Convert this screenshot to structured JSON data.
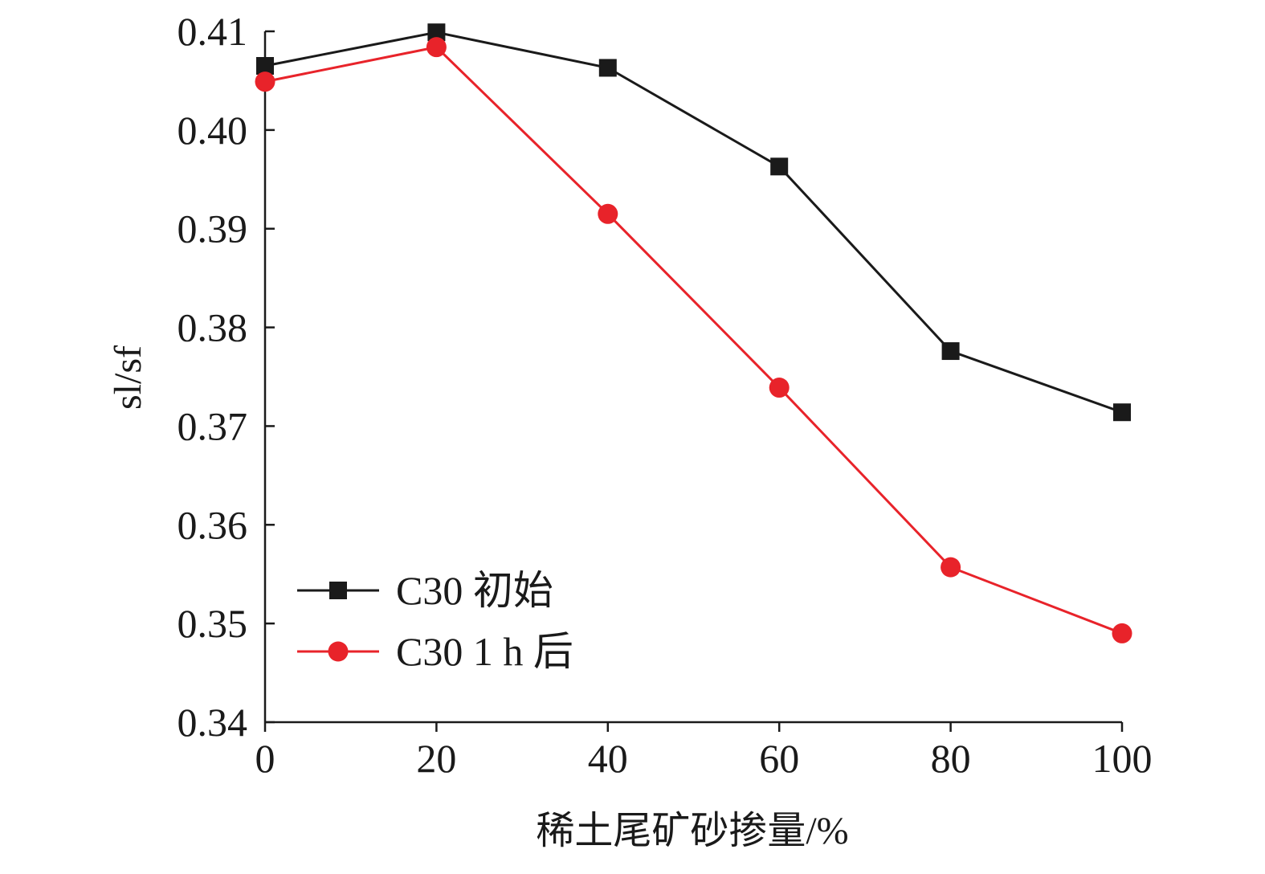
{
  "chart_data": {
    "type": "line",
    "xlabel": "稀土尾矿砂掺量/%",
    "ylabel": "sl/sf",
    "x": [
      0,
      20,
      40,
      60,
      80,
      100
    ],
    "xlim": [
      0,
      100
    ],
    "ylim": [
      0.34,
      0.41
    ],
    "xticks": [
      "0",
      "20",
      "40",
      "60",
      "80",
      "100"
    ],
    "yticks": [
      "0.34",
      "0.35",
      "0.36",
      "0.37",
      "0.38",
      "0.39",
      "0.40",
      "0.41"
    ],
    "grid": false,
    "legend_position": "bottom-left",
    "series": [
      {
        "name": "C30 初始",
        "marker": "square",
        "color": "#1a1a1a",
        "values": [
          0.4065,
          0.4099,
          0.4063,
          0.3963,
          0.3776,
          0.3714
        ]
      },
      {
        "name": "C30 1 h 后",
        "marker": "circle",
        "color": "#e8232a",
        "values": [
          0.4049,
          0.4084,
          0.3915,
          0.3739,
          0.3557,
          0.349
        ]
      }
    ]
  }
}
